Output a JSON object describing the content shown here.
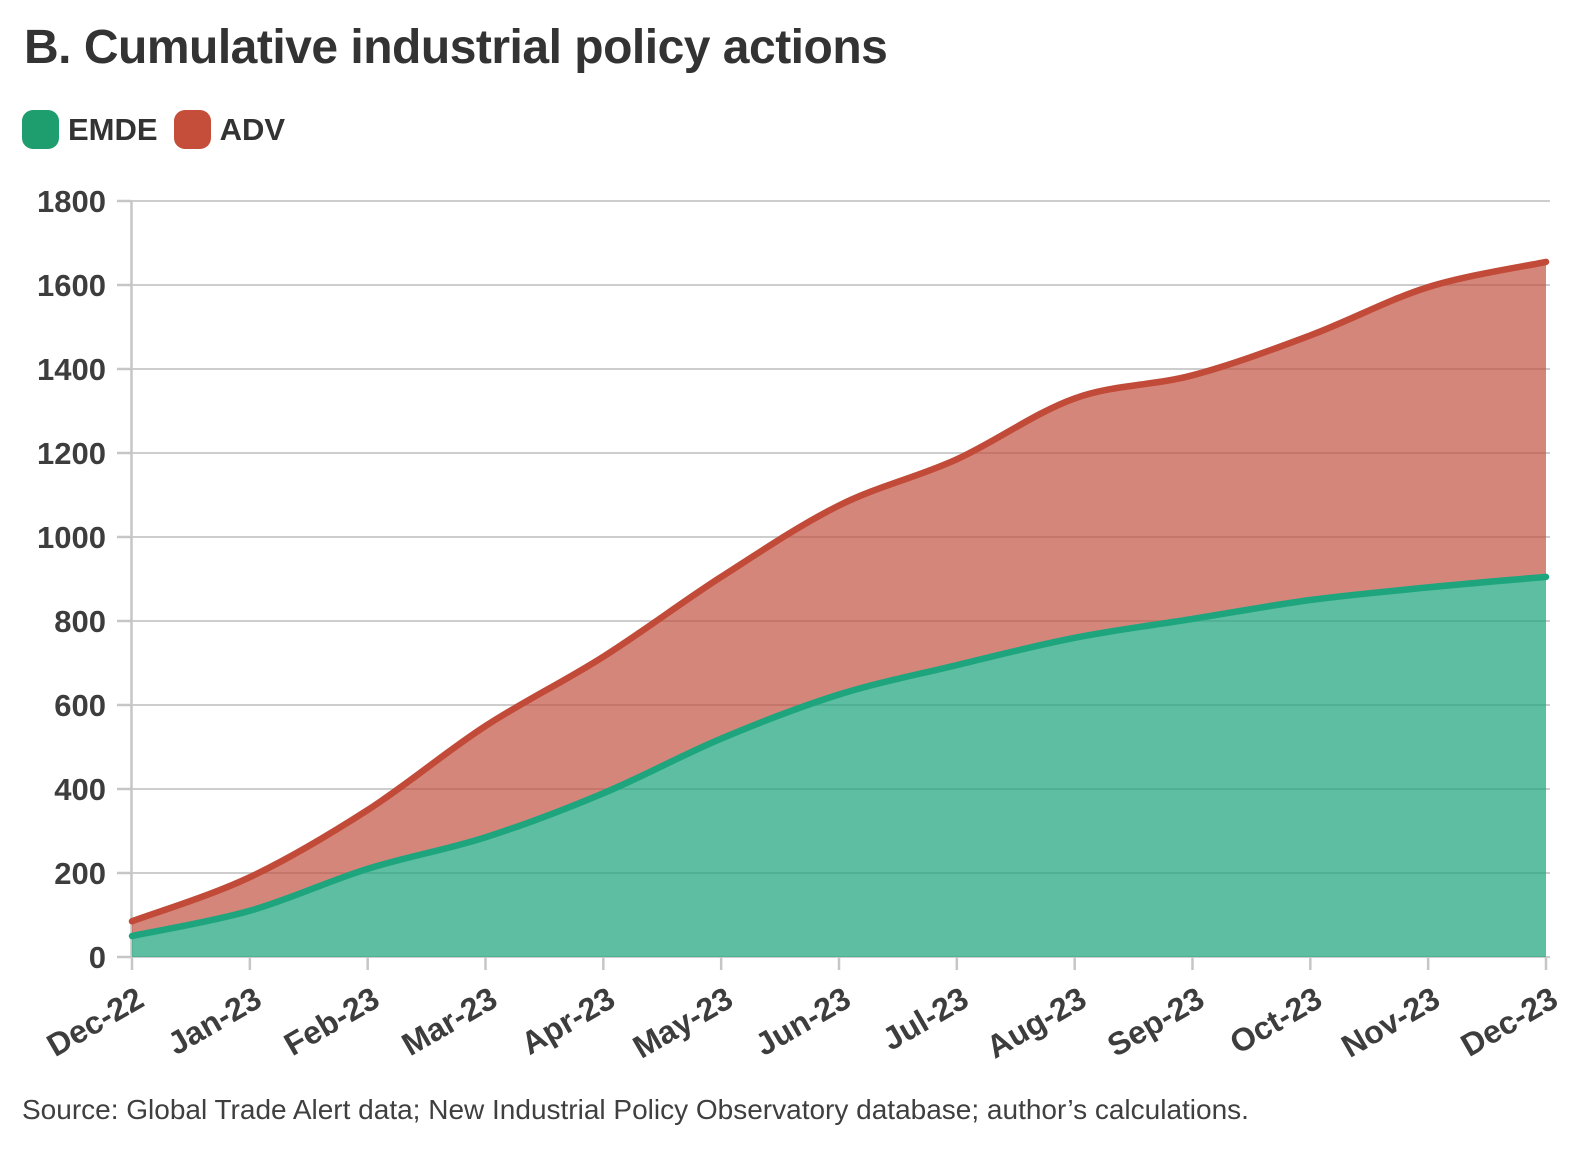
{
  "title": "B. Cumulative industrial policy actions",
  "legend": [
    {
      "label": "EMDE",
      "color": "#1e9e6e"
    },
    {
      "label": "ADV",
      "color": "#c44e3a"
    }
  ],
  "source": "Source: Global Trade Alert data; New Industrial Policy Observatory database; author’s calculations.",
  "chart_data": {
    "type": "area",
    "stacked": true,
    "title": "B. Cumulative industrial policy actions",
    "categories": [
      "Dec-22",
      "Jan-23",
      "Feb-23",
      "Mar-23",
      "Apr-23",
      "May-23",
      "Jun-23",
      "Jul-23",
      "Aug-23",
      "Sep-23",
      "Oct-23",
      "Nov-23",
      "Dec-23"
    ],
    "series": [
      {
        "name": "EMDE",
        "values": [
          50,
          110,
          210,
          285,
          390,
          520,
          625,
          695,
          760,
          805,
          850,
          880,
          905
        ],
        "line_color": "#1ea57d",
        "fill_color": "rgba(30,165,125,0.72)"
      },
      {
        "name": "ADV",
        "values": [
          35,
          80,
          140,
          265,
          325,
          385,
          450,
          490,
          570,
          580,
          630,
          715,
          750
        ],
        "line_color": "#c14b38",
        "fill_color": "rgba(193,75,56,0.67)"
      }
    ],
    "stacked_totals": [
      85,
      190,
      350,
      550,
      715,
      905,
      1075,
      1185,
      1330,
      1385,
      1480,
      1595,
      1655
    ],
    "xlabel": "",
    "ylabel": "",
    "ylim": [
      0,
      1800
    ],
    "ytick_step": 200,
    "grid": "horizontal",
    "grid_color": "#cdcdcd",
    "axis_color": "#c6c6c6",
    "tick_label_color": "#3d3d3d",
    "legend_position": "top-left"
  }
}
